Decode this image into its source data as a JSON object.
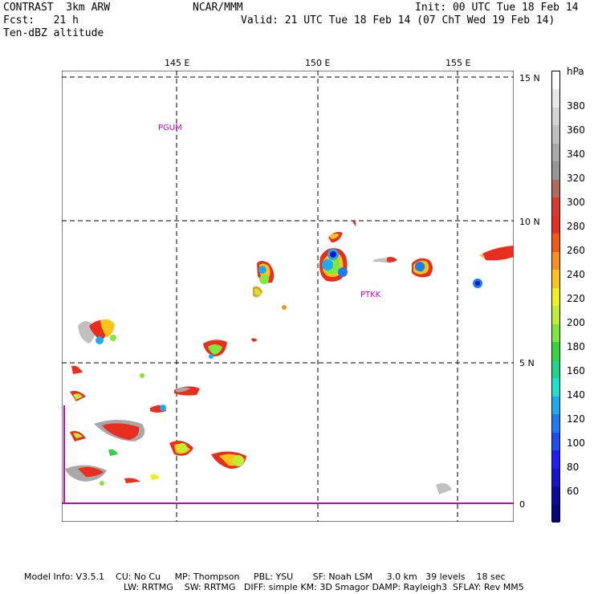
{
  "header": {
    "model": "CONTRAST  3km ARW",
    "center": "NCAR/MMM",
    "init": "Init: 00 UTC Tue 18 Feb 14",
    "fcst": "Fcst:   21 h",
    "valid": "Valid: 21 UTC Tue 18 Feb 14 (07 ChT Wed 19 Feb 14)",
    "field": "Ten-dBZ altitude"
  },
  "map": {
    "lon_labels": [
      "145 E",
      "150 E",
      "155 E"
    ],
    "lat_labels": [
      "15 N",
      "10 N",
      "5 N",
      "0"
    ],
    "stations": [
      "PGUM",
      "PTKK"
    ]
  },
  "colorbar": {
    "unit": "hPa",
    "labels": [
      "380",
      "360",
      "340",
      "320",
      "300",
      "280",
      "260",
      "240",
      "220",
      "200",
      "180",
      "160",
      "140",
      "120",
      "100",
      "80",
      "60"
    ],
    "colors": [
      "#ffffff",
      "#e8e8e8",
      "#d4d4d4",
      "#bfbfbf",
      "#a8a8a8",
      "#969696",
      "#b36b5e",
      "#d93a2e",
      "#e82e1e",
      "#f05a14",
      "#f7921e",
      "#fcc419",
      "#f0f01e",
      "#bfee33",
      "#7ee83c",
      "#35d43c",
      "#22d48a",
      "#1ee0d0",
      "#1eaaf0",
      "#1e7cf0",
      "#1e4ef0",
      "#1e1ef0",
      "#1414c8",
      "#0a0aa0",
      "#050578"
    ]
  },
  "footer": {
    "line1": "Model Info: V3.5.1    CU: No Cu     MP: Thompson     PBL: YSU       SF: Noah LSM     3.0 km   39 levels    18 sec",
    "line2": "LW: RRTMG    SW: RRTMG   DIFF: simple KM: 3D Smagor DAMP: Rayleigh3  SFLAY: Rev MM5"
  }
}
